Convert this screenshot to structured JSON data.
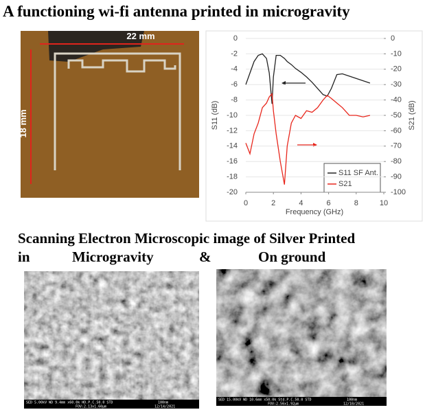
{
  "header": {
    "title": "A functioning wi-fi antenna printed in microgravity"
  },
  "photo": {
    "width_label": "22 mm",
    "height_label": "18 mm"
  },
  "chart_data": {
    "type": "line",
    "x": [
      0,
      0.3,
      0.6,
      0.9,
      1.2,
      1.5,
      1.7,
      1.9,
      2.0,
      2.2,
      2.5,
      2.8,
      3.0,
      3.3,
      3.6,
      4.0,
      4.4,
      4.8,
      5.2,
      5.6,
      5.9,
      6.2,
      6.6,
      7.0,
      7.5,
      8.0,
      8.5,
      9.0
    ],
    "series": [
      {
        "name": "S11 SF Ant.",
        "color": "#222222",
        "values": [
          -6,
          -4.5,
          -3,
          -2.2,
          -2,
          -2.6,
          -4.5,
          -8.5,
          -5,
          -2.2,
          -2.2,
          -2.6,
          -3,
          -3.4,
          -3.9,
          -4.4,
          -5,
          -5.7,
          -6.5,
          -7.3,
          -7.5,
          -6.5,
          -4.7,
          -4.6,
          -4.9,
          -5.2,
          -5.5,
          -5.8
        ]
      },
      {
        "name": "S21",
        "color": "#e8261c",
        "axis": "y2",
        "values": [
          -68,
          -75,
          -62,
          -55,
          -45,
          -42,
          -38,
          -36,
          -47,
          -62,
          -80,
          -95,
          -70,
          -55,
          -50,
          -52,
          -47,
          -48,
          -45,
          -40,
          -37,
          -39,
          -42,
          -45,
          -50,
          -50,
          -51,
          -50
        ]
      }
    ],
    "xlabel": "Frequency (GHz)",
    "ylabel": "S11 (dB)",
    "y2label": "S21 (dB)",
    "xlim": [
      0,
      10
    ],
    "xticks": [
      0,
      2,
      4,
      6,
      8,
      10
    ],
    "ylim": [
      -20,
      0
    ],
    "yticks": [
      0,
      -2,
      -4,
      -6,
      -8,
      -10,
      -12,
      -14,
      -16,
      -18,
      -20
    ],
    "y2lim": [
      -100,
      0
    ],
    "y2ticks": [
      0,
      -10,
      -20,
      -30,
      -40,
      -50,
      -60,
      -70,
      -80,
      -90,
      -100
    ],
    "legend": "lower right"
  },
  "subtitle": {
    "line1": "Scanning Electron Microscopic image of Silver Printed",
    "line2": [
      "in",
      "Microgravity",
      "&",
      "On ground"
    ]
  },
  "sem_left": {
    "info": "SED 5.00kV WD 9.4mm x60.0k HD.P.C.50.0 STD",
    "scale": "100nm",
    "fov": "FOV:2.13x1.60µm",
    "date": "12/14/2021"
  },
  "sem_right": {
    "info": "SED 15.00kV WD 10.6mm x50.0k Std.P.C.50.0 STD",
    "scale": "100nm",
    "fov": "FOV:2.56x1.92µm",
    "date": "12/10/2021"
  }
}
